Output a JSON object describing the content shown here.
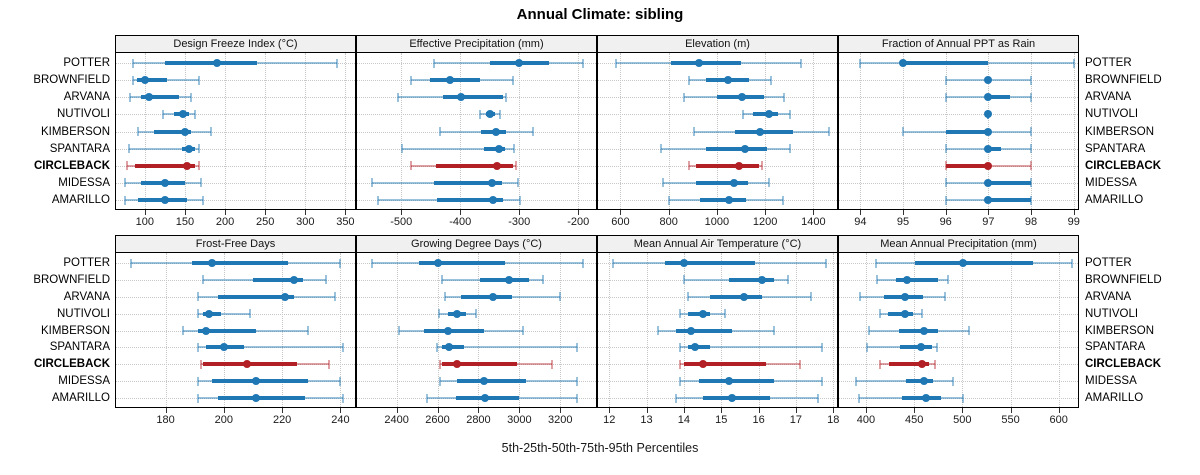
{
  "title": "Annual Climate: sibling",
  "caption": "5th-25th-50th-75th-95th Percentiles",
  "sites": [
    "POTTER",
    "BROWNFIELD",
    "ARVANA",
    "NUTIVOLI",
    "KIMBERSON",
    "SPANTARA",
    "CIRCLEBACK",
    "MIDESSA",
    "AMARILLO"
  ],
  "highlight_site": "CIRCLEBACK",
  "colors": {
    "series_blue": "#1f77b4",
    "series_blue_light": "rgba(31,119,180,0.45)",
    "highlight_red": "#b22025",
    "highlight_red_light": "rgba(178,32,37,0.42)",
    "strip_bg": "#f0f0f0",
    "grid": "#c7c7c7",
    "border": "#000000"
  },
  "chart_data": {
    "type": "dotplot-percentiles",
    "percentiles": [
      5,
      25,
      50,
      75,
      95
    ],
    "legend_position": "none",
    "grid": true,
    "layout": {
      "rows": 2,
      "cols": 4
    },
    "panels": [
      {
        "title": "Design Freeze Index (°C)",
        "xlim": [
          64,
          362
        ],
        "ticks": [
          100,
          150,
          200,
          250,
          300,
          350
        ],
        "values": {
          "POTTER": [
            85,
            125,
            190,
            240,
            340
          ],
          "BROWNFIELD": [
            85,
            90,
            100,
            127,
            168
          ],
          "ARVANA": [
            82,
            95,
            105,
            143,
            158
          ],
          "NUTIVOLI": [
            122,
            136,
            148,
            155,
            163
          ],
          "KIMBERSON": [
            92,
            112,
            150,
            157,
            182
          ],
          "SPANTARA": [
            80,
            146,
            155,
            162,
            168
          ],
          "CIRCLEBACK": [
            78,
            88,
            152,
            162,
            167
          ],
          "MIDESSA": [
            75,
            95,
            125,
            150,
            170
          ],
          "AMARILLO": [
            75,
            92,
            125,
            152,
            172
          ]
        }
      },
      {
        "title": "Effective Precipitation (mm)",
        "xlim": [
          -575,
          -170
        ],
        "ticks": [
          -500,
          -400,
          -300,
          -200
        ],
        "values": {
          "POTTER": [
            -445,
            -350,
            -300,
            -250,
            -192
          ],
          "BROWNFIELD": [
            -483,
            -452,
            -418,
            -367,
            -310
          ],
          "ARVANA": [
            -505,
            -430,
            -398,
            -327,
            -322
          ],
          "NUTIVOLI": [
            -367,
            -357,
            -350,
            -341,
            -332
          ],
          "KIMBERSON": [
            -435,
            -365,
            -339,
            -322,
            -277
          ],
          "SPANTARA": [
            -499,
            -360,
            -334,
            -325,
            -309
          ],
          "CIRCLEBACK": [
            -483,
            -441,
            -338,
            -310,
            -306
          ],
          "MIDESSA": [
            -550,
            -445,
            -347,
            -330,
            -303
          ],
          "AMARILLO": [
            -540,
            -440,
            -345,
            -328,
            -298
          ]
        }
      },
      {
        "title": "Elevation (m)",
        "xlim": [
          507,
          1498
        ],
        "ticks": [
          600,
          800,
          1000,
          1200,
          1400
        ],
        "values": {
          "POTTER": [
            580,
            810,
            925,
            1100,
            1350
          ],
          "BROWNFIELD": [
            885,
            955,
            1045,
            1135,
            1225
          ],
          "ARVANA": [
            865,
            1000,
            1105,
            1195,
            1280
          ],
          "NUTIVOLI": [
            1110,
            1150,
            1218,
            1253,
            1303
          ],
          "KIMBERSON": [
            905,
            1075,
            1177,
            1317,
            1465
          ],
          "SPANTARA": [
            770,
            955,
            1118,
            1207,
            1305
          ],
          "CIRCLEBACK": [
            885,
            915,
            1090,
            1175,
            1185
          ],
          "MIDESSA": [
            775,
            915,
            1070,
            1128,
            1218
          ],
          "AMARILLO": [
            800,
            928,
            1052,
            1119,
            1275
          ]
        }
      },
      {
        "title": "Fraction of Annual PPT as Rain",
        "xlim": [
          93.5,
          99.1
        ],
        "ticks": [
          94,
          95,
          96,
          97,
          98,
          99
        ],
        "values": {
          "POTTER": [
            94,
            95,
            95,
            97,
            99
          ],
          "BROWNFIELD": [
            96,
            97,
            97,
            97,
            98
          ],
          "ARVANA": [
            96,
            97,
            97,
            97.5,
            98
          ],
          "NUTIVOLI": [
            97,
            97,
            97,
            97,
            97
          ],
          "KIMBERSON": [
            95,
            96,
            97,
            97,
            98
          ],
          "SPANTARA": [
            96,
            97,
            97,
            97.3,
            98
          ],
          "CIRCLEBACK": [
            96,
            96,
            97,
            97,
            98
          ],
          "MIDESSA": [
            96,
            97,
            97,
            98,
            98
          ],
          "AMARILLO": [
            96,
            97,
            97,
            98,
            98
          ]
        }
      },
      {
        "title": "Frost-Free Days",
        "xlim": [
          163,
          245
        ],
        "ticks": [
          180,
          200,
          220,
          240
        ],
        "values": {
          "POTTER": [
            168,
            189,
            196,
            222,
            240
          ],
          "BROWNFIELD": [
            193,
            210,
            224,
            227,
            235
          ],
          "ARVANA": [
            191,
            198,
            221,
            224,
            238
          ],
          "NUTIVOLI": [
            191,
            193,
            195,
            199,
            209
          ],
          "KIMBERSON": [
            186,
            191,
            194,
            211,
            229
          ],
          "SPANTARA": [
            191,
            194,
            200,
            207,
            241
          ],
          "CIRCLEBACK": [
            192,
            193,
            208,
            225,
            236
          ],
          "MIDESSA": [
            191,
            196,
            211,
            229,
            240
          ],
          "AMARILLO": [
            191,
            198,
            211,
            228,
            241
          ]
        }
      },
      {
        "title": "Growing Degree Days (°C)",
        "xlim": [
          2206,
          3375
        ],
        "ticks": [
          2400,
          2600,
          2800,
          3000,
          3200
        ],
        "values": {
          "POTTER": [
            2280,
            2510,
            2600,
            2930,
            3310
          ],
          "BROWNFIELD": [
            2620,
            2810,
            2950,
            3045,
            3115
          ],
          "ARVANA": [
            2635,
            2715,
            2870,
            2965,
            3200
          ],
          "NUTIVOLI": [
            2605,
            2650,
            2695,
            2740,
            2790
          ],
          "KIMBERSON": [
            2410,
            2535,
            2650,
            2825,
            3020
          ],
          "SPANTARA": [
            2595,
            2620,
            2658,
            2730,
            3280
          ],
          "CIRCLEBACK": [
            2610,
            2620,
            2695,
            2990,
            3160
          ],
          "MIDESSA": [
            2610,
            2695,
            2825,
            3035,
            3280
          ],
          "AMARILLO": [
            2550,
            2690,
            2830,
            3000,
            3280
          ]
        }
      },
      {
        "title": "Mean Annual Air Temperature (°C)",
        "xlim": [
          11.7,
          18.1
        ],
        "ticks": [
          12,
          13,
          14,
          15,
          16,
          17,
          18
        ],
        "values": {
          "POTTER": [
            12.1,
            13.5,
            14.0,
            15.9,
            17.8
          ],
          "BROWNFIELD": [
            14.0,
            15.2,
            16.1,
            16.4,
            16.8
          ],
          "ARVANA": [
            14.1,
            14.7,
            15.6,
            16.1,
            17.4
          ],
          "NUTIVOLI": [
            13.9,
            14.1,
            14.5,
            14.7,
            15.1
          ],
          "KIMBERSON": [
            13.3,
            13.8,
            14.2,
            15.3,
            16.4
          ],
          "SPANTARA": [
            13.9,
            14.1,
            14.3,
            14.7,
            17.7
          ],
          "CIRCLEBACK": [
            13.9,
            14.0,
            14.5,
            16.2,
            17.1
          ],
          "MIDESSA": [
            13.9,
            14.4,
            15.2,
            16.4,
            17.7
          ],
          "AMARILLO": [
            13.8,
            14.5,
            15.3,
            16.3,
            17.6
          ]
        }
      },
      {
        "title": "Mean Annual Precipitation (mm)",
        "xlim": [
          372,
          620
        ],
        "ticks": [
          400,
          450,
          500,
          550,
          600
        ],
        "values": {
          "POTTER": [
            410,
            451,
            501,
            573,
            614
          ],
          "BROWNFIELD": [
            411,
            431,
            443,
            475,
            485
          ],
          "ARVANA": [
            394,
            419,
            440,
            459,
            482
          ],
          "NUTIVOLI": [
            415,
            423,
            441,
            449,
            458
          ],
          "KIMBERSON": [
            403,
            434,
            460,
            475,
            507
          ],
          "SPANTARA": [
            401,
            435,
            457,
            469,
            474
          ],
          "CIRCLEBACK": [
            415,
            424,
            458,
            465,
            472
          ],
          "MIDESSA": [
            390,
            442,
            460,
            470,
            490
          ],
          "AMARILLO": [
            393,
            437,
            462,
            478,
            501
          ]
        }
      }
    ]
  }
}
